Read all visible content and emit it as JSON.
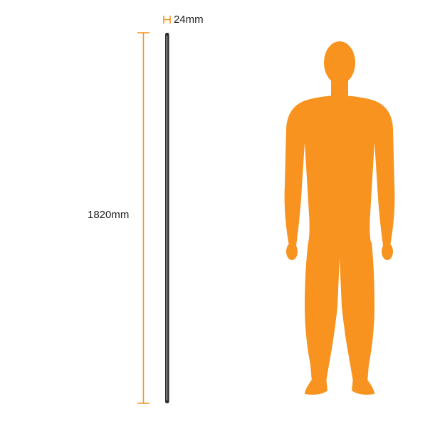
{
  "dimensions": {
    "width_label": "24mm",
    "height_label": "1820mm"
  },
  "colors": {
    "accent": "#F7931E",
    "pole_dark": "#2b2b2b",
    "pole_light": "#9a9a9a",
    "text": "#222222"
  },
  "icons": {
    "width_marker": "width-dimension-icon",
    "height_marker": "height-dimension-icon",
    "figure": "human-silhouette-icon"
  }
}
